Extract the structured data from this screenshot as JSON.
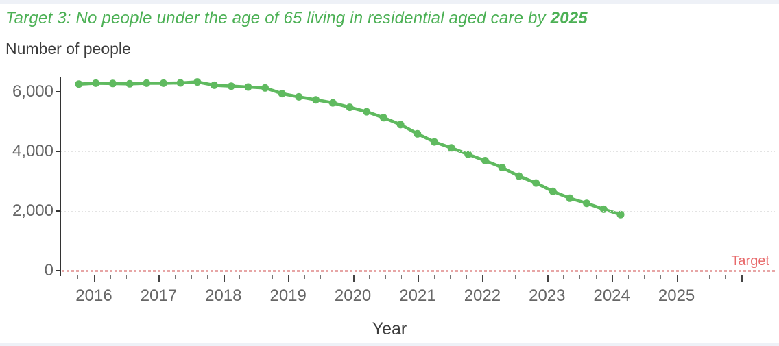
{
  "header": {
    "title_main": "Target 3: No people under the age of 65 living in residential aged care by ",
    "title_year": "2025",
    "subtitle": "Number of people"
  },
  "chart_data": {
    "type": "line",
    "title": "Target 3: No people under the age of 65 living in residential aged care by 2025",
    "xlabel": "Year",
    "ylabel": "Number of people",
    "x": [
      "Sep 2015",
      "Dec 2015",
      "Mar 2016",
      "Jun 2016",
      "Sep 2016",
      "Dec 2016",
      "Mar 2017",
      "Jun 2017",
      "Sep 2017",
      "Dec 2017",
      "Mar 2018",
      "Jun 2018",
      "Sep 2018",
      "Dec 2018",
      "Mar 2019",
      "Jun 2019",
      "Sep 2019",
      "Dec 2019",
      "Mar 2020",
      "Jun 2020",
      "Sep 2020",
      "Dec 2020",
      "Mar 2021",
      "Jun 2021",
      "Sep 2021",
      "Dec 2021",
      "Mar 2022",
      "Jun 2022",
      "Sep 2022",
      "Dec 2022",
      "Mar 2023",
      "Jun 2023",
      "Sep 2023"
    ],
    "series": [
      {
        "name": "Number of people",
        "values": [
          6260,
          6290,
          6280,
          6270,
          6290,
          6290,
          6300,
          6330,
          6220,
          6190,
          6160,
          6130,
          5940,
          5830,
          5730,
          5630,
          5480,
          5330,
          5130,
          4900,
          4590,
          4320,
          4120,
          3900,
          3690,
          3460,
          3170,
          2940,
          2660,
          2430,
          2260,
          2060,
          1880
        ]
      }
    ],
    "x_tick_labels": [
      "2016",
      "2017",
      "2018",
      "2019",
      "2020",
      "2021",
      "2022",
      "2023",
      "2024",
      "2025"
    ],
    "x_tick_years": [
      2016,
      2017,
      2018,
      2019,
      2020,
      2021,
      2022,
      2023,
      2024,
      2025
    ],
    "y_tick_labels": [
      "6,000",
      "4,000",
      "2,000",
      "0"
    ],
    "y_tick_values": [
      6000,
      4000,
      2000,
      0
    ],
    "ylim": [
      0,
      6700
    ],
    "grid": "horizontal-dotted",
    "legend": "none",
    "target_line": {
      "label": "Target",
      "value": 0,
      "style": "dotted"
    }
  },
  "colors": {
    "title_green": "#4bb054",
    "line_green": "#5fba5f",
    "target_red": "#e8696a",
    "target_line_pink": "#e7a6a6",
    "axis_text": "#666666",
    "dark_text": "#3c3c3c",
    "gridline": "#e3e3e3",
    "frame_strip": "#eef1f7"
  }
}
